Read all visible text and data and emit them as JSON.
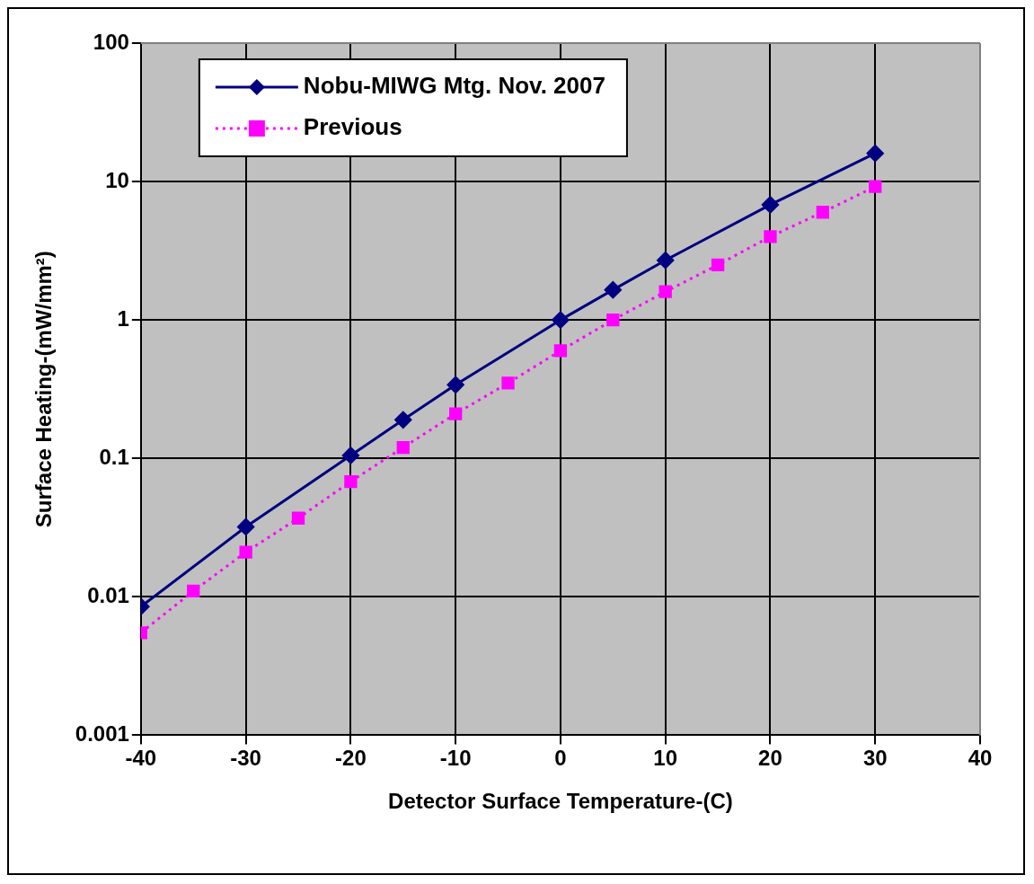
{
  "chart_data": {
    "type": "line",
    "xlabel": "Detector Surface Temperature-(C)",
    "ylabel": "Surface Heating-(mW/mm²)",
    "xlim": [
      -40,
      40
    ],
    "xticks": [
      -40,
      -30,
      -20,
      -10,
      0,
      10,
      20,
      30,
      40
    ],
    "ylim": [
      0.001,
      100
    ],
    "yticks": [
      0.001,
      0.01,
      0.1,
      1,
      10,
      100
    ],
    "log": "y",
    "grid": true,
    "legend": "top left",
    "series": [
      {
        "name": "Nobu-MIWG Mtg. Nov. 2007",
        "color": "#000080",
        "marker": "diamond",
        "line_style": "solid",
        "x": [
          -40,
          -30,
          -20,
          -15,
          -10,
          0,
          5,
          10,
          20,
          30
        ],
        "values": [
          0.0085,
          0.032,
          0.105,
          0.19,
          0.34,
          1.0,
          1.65,
          2.7,
          6.8,
          16
        ]
      },
      {
        "name": "Previous",
        "color": "#ff00ff",
        "marker": "square",
        "line_style": "dotted",
        "x": [
          -40,
          -35,
          -30,
          -25,
          -20,
          -15,
          -10,
          -5,
          0,
          5,
          10,
          15,
          20,
          25,
          30
        ],
        "values": [
          0.0055,
          0.011,
          0.021,
          0.037,
          0.068,
          0.12,
          0.21,
          0.35,
          0.6,
          1.0,
          1.6,
          2.5,
          4.0,
          6.0,
          9.2
        ]
      }
    ]
  }
}
